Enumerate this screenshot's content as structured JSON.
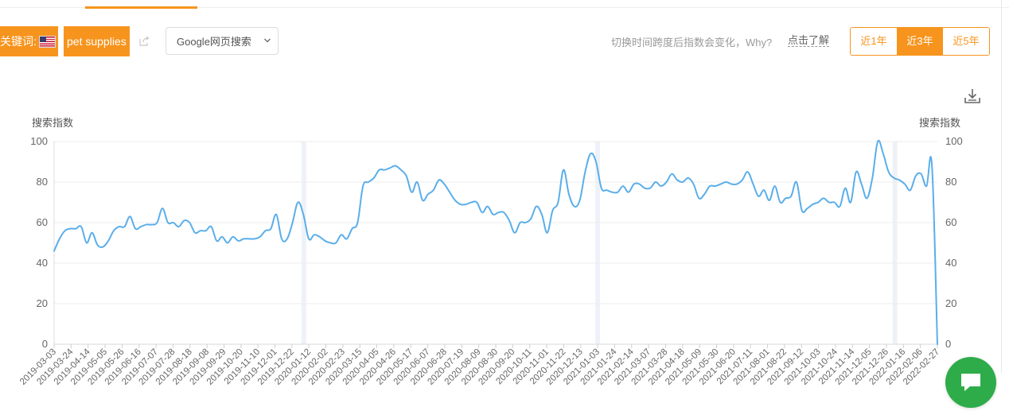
{
  "toolbar": {
    "keyword_label": "关键词:",
    "keyword": "pet supplies",
    "engine": "Google网页搜索",
    "hint": "切换时间跨度后指数会变化，Why?",
    "hint_link": "点击了解",
    "ranges": [
      "近1年",
      "近3年",
      "近5年"
    ],
    "active_range": "近3年"
  },
  "colors": {
    "accent": "#f7941d",
    "line": "#5aaeea",
    "chat": "#2fac4a"
  },
  "icons": [
    "us-flag-icon",
    "share-icon",
    "chevron-down-icon",
    "download-icon",
    "chat-icon"
  ],
  "chart_data": {
    "type": "line",
    "ylabel_left": "搜索指数",
    "ylabel_right": "搜索指数",
    "ylim": [
      0,
      100
    ],
    "yticks": [
      0,
      20,
      40,
      60,
      80,
      100
    ],
    "grid": true,
    "x_tick_labels": [
      "2019-03-03",
      "2019-03-24",
      "2019-04-14",
      "2019-05-05",
      "2019-05-26",
      "2019-06-16",
      "2019-07-07",
      "2019-07-28",
      "2019-08-18",
      "2019-09-08",
      "2019-09-29",
      "2019-10-20",
      "2019-11-10",
      "2019-12-01",
      "2019-12-22",
      "2020-01-12",
      "2020-02-02",
      "2020-02-23",
      "2020-03-15",
      "2020-04-05",
      "2020-04-26",
      "2020-05-17",
      "2020-06-07",
      "2020-06-28",
      "2020-07-19",
      "2020-08-09",
      "2020-08-30",
      "2020-09-20",
      "2020-10-11",
      "2020-11-01",
      "2020-11-22",
      "2020-12-13",
      "2021-01-03",
      "2021-01-24",
      "2021-02-14",
      "2021-03-07",
      "2021-03-28",
      "2021-04-18",
      "2021-05-09",
      "2021-05-30",
      "2021-06-20",
      "2021-07-11",
      "2021-08-01",
      "2021-08-22",
      "2021-09-12",
      "2021-10-03",
      "2021-10-24",
      "2021-11-14",
      "2021-12-05",
      "2021-12-26",
      "2022-01-16",
      "2022-02-06",
      "2022-02-27"
    ],
    "series": [
      {
        "values": [
          46,
          52,
          56,
          57,
          57,
          58,
          50,
          55,
          49,
          48,
          51,
          56,
          58,
          58,
          63,
          57,
          58,
          59,
          59,
          60,
          67,
          60,
          60,
          58,
          61,
          60,
          55,
          56,
          56,
          58,
          51,
          53,
          50,
          53,
          51,
          52,
          52,
          52,
          53,
          56,
          57,
          64,
          52,
          52,
          60,
          70,
          64,
          52,
          54,
          53,
          51,
          50,
          50,
          54,
          52,
          57,
          60,
          78,
          80,
          82,
          86,
          86,
          87,
          88,
          86,
          83,
          75,
          80,
          71,
          74,
          76,
          81,
          79,
          75,
          71,
          69,
          69,
          70,
          70,
          65,
          68,
          64,
          65,
          65,
          61,
          55,
          60,
          60,
          62,
          68,
          64,
          55,
          66,
          70,
          86,
          74,
          68,
          71,
          85,
          94,
          90,
          77,
          76,
          75,
          75,
          78,
          75,
          79,
          79,
          77,
          77,
          80,
          78,
          80,
          84,
          81,
          80,
          82,
          79,
          72,
          74,
          78,
          78,
          79,
          80,
          79,
          79,
          81,
          85,
          79,
          73,
          76,
          71,
          78,
          70,
          72,
          73,
          80,
          66,
          67,
          69,
          70,
          72,
          70,
          70,
          68,
          77,
          70,
          85,
          79,
          72,
          82,
          100,
          94,
          85,
          82,
          81,
          79,
          76,
          83,
          84,
          78,
          88,
          0
        ]
      }
    ]
  }
}
